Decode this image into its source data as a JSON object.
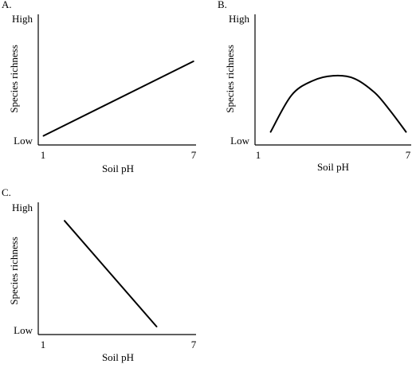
{
  "chart_data": [
    {
      "panel_label": "A.",
      "type": "line",
      "x": [
        1.2,
        6.9
      ],
      "y": [
        0.07,
        0.64
      ],
      "xlabel": "Soil pH",
      "ylabel": "Species richness",
      "xlim": [
        1,
        7
      ],
      "ylim": [
        0,
        1
      ],
      "x_ticks": [
        "1",
        "7"
      ],
      "y_ticks": [
        "Low",
        "High"
      ],
      "grid": false
    },
    {
      "panel_label": "B.",
      "type": "line",
      "x": [
        1.6,
        2.4,
        3.2,
        4.0,
        4.8,
        5.6,
        6.2,
        6.8
      ],
      "y": [
        0.1,
        0.38,
        0.49,
        0.53,
        0.51,
        0.4,
        0.26,
        0.1
      ],
      "xlabel": "Soil pH",
      "ylabel": "Species richness",
      "xlim": [
        1,
        7
      ],
      "ylim": [
        0,
        1
      ],
      "x_ticks": [
        "1",
        "7"
      ],
      "y_ticks": [
        "Low",
        "High"
      ],
      "grid": false
    },
    {
      "panel_label": "C.",
      "type": "line",
      "x": [
        2.0,
        5.5
      ],
      "y": [
        0.86,
        0.06
      ],
      "xlabel": "Soil pH",
      "ylabel": "Species richness",
      "xlim": [
        1,
        7
      ],
      "ylim": [
        0,
        1
      ],
      "x_ticks": [
        "1",
        "7"
      ],
      "y_ticks": [
        "Low",
        "High"
      ],
      "grid": false
    }
  ]
}
